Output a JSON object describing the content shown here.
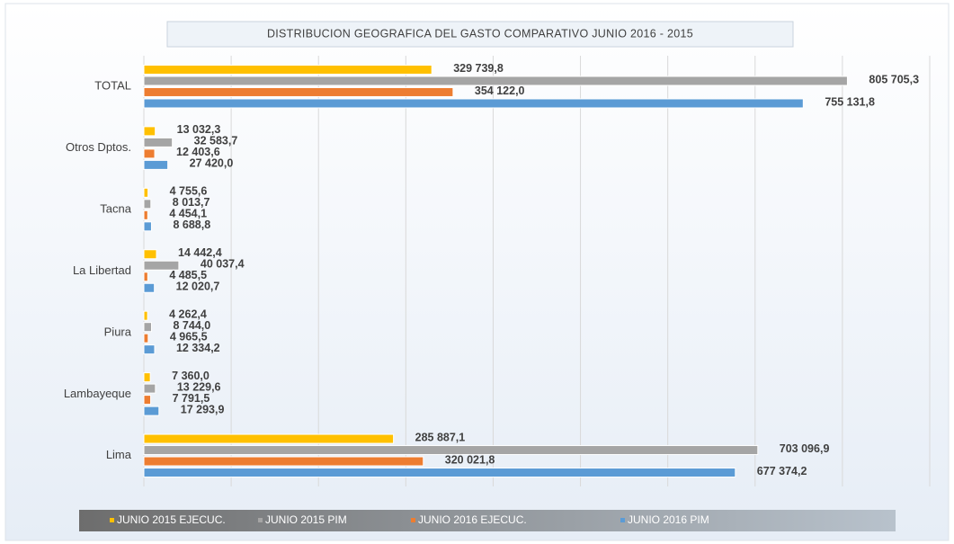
{
  "chart_data": {
    "type": "hbar",
    "title": "DISTRIBUCION GEOGRAFICA  DEL GASTO  COMPARATIVO  JUNIO 2016 - 2015",
    "categories": [
      "TOTAL",
      "Otros Dptos.",
      "Tacna",
      "La Libertad",
      "Piura",
      "Lambayeque",
      "Lima"
    ],
    "series": [
      {
        "name": "JUNIO 2015 EJECUC.",
        "color": "#ffc000",
        "values": [
          329739.8,
          13032.3,
          4755.6,
          14442.4,
          4262.4,
          7360.0,
          285887.1
        ],
        "value_labels": [
          "329 739,8",
          "13 032,3",
          "4 755,6",
          "14 442,4",
          "4 262,4",
          "7 360,0",
          "285 887,1"
        ]
      },
      {
        "name": "JUNIO 2015 PIM",
        "color": "#a5a5a5",
        "values": [
          805705.3,
          32583.7,
          8013.7,
          40037.4,
          8744.0,
          13229.6,
          703096.9
        ],
        "value_labels": [
          "805 705,3",
          "32 583,7",
          "8 013,7",
          "40 037,4",
          "8 744,0",
          "13 229,6",
          "703 096,9"
        ]
      },
      {
        "name": "JUNIO 2016 EJECUC.",
        "color": "#ed7d31",
        "values": [
          354122.0,
          12403.6,
          4454.1,
          4485.5,
          4965.5,
          7791.5,
          320021.8
        ],
        "value_labels": [
          "354 122,0",
          "12 403,6",
          "4 454,1",
          "4 485,5",
          "4 965,5",
          "7 791,5",
          "320 021,8"
        ]
      },
      {
        "name": "JUNIO 2016 PIM",
        "color": "#5b9bd5",
        "values": [
          755131.8,
          27420.0,
          8688.8,
          12020.7,
          12334.2,
          17293.9,
          677374.2
        ],
        "value_labels": [
          "755 131,8",
          "27 420,0",
          "8 688,8",
          "12 020,7",
          "12 334,2",
          "17 293,9",
          "677 374,2"
        ]
      }
    ],
    "xlim": [
      0,
      900000
    ],
    "xticks": [
      0,
      100000,
      200000,
      300000,
      400000,
      500000,
      600000,
      700000,
      800000,
      900000
    ],
    "grid": true
  }
}
